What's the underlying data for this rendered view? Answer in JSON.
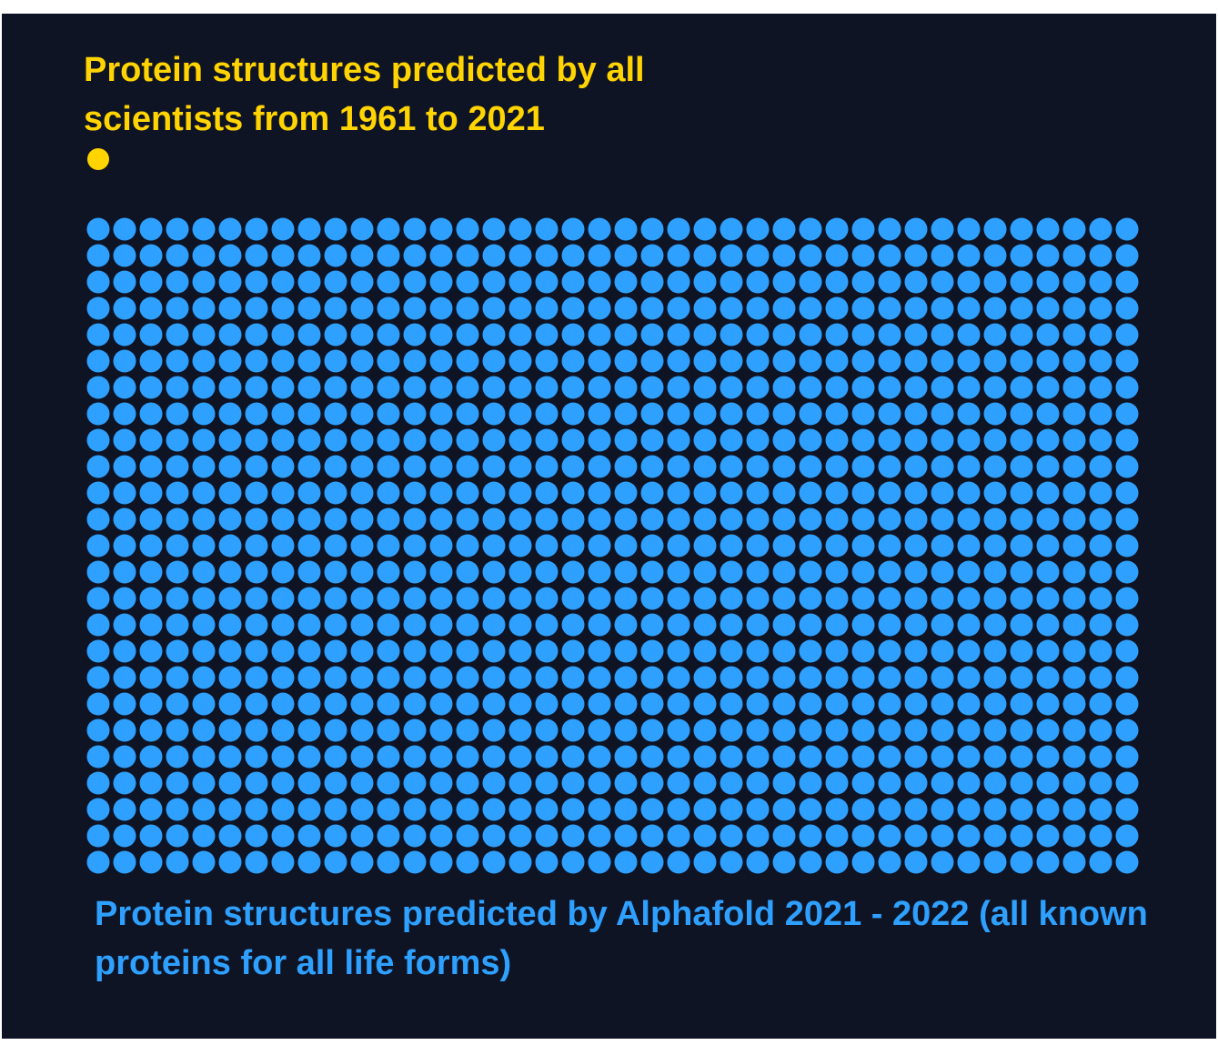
{
  "chart_data": {
    "type": "waffle",
    "series": [
      {
        "name": "Protein structures predicted by all scientists from 1961 to 2021",
        "color": "#ffd400",
        "values": 1
      },
      {
        "name": "Protein structures predicted by Alphafold 2021 - 2022 (all known proteins for all life forms)",
        "color": "#2ea0ff",
        "values": 1000
      }
    ]
  }
}
